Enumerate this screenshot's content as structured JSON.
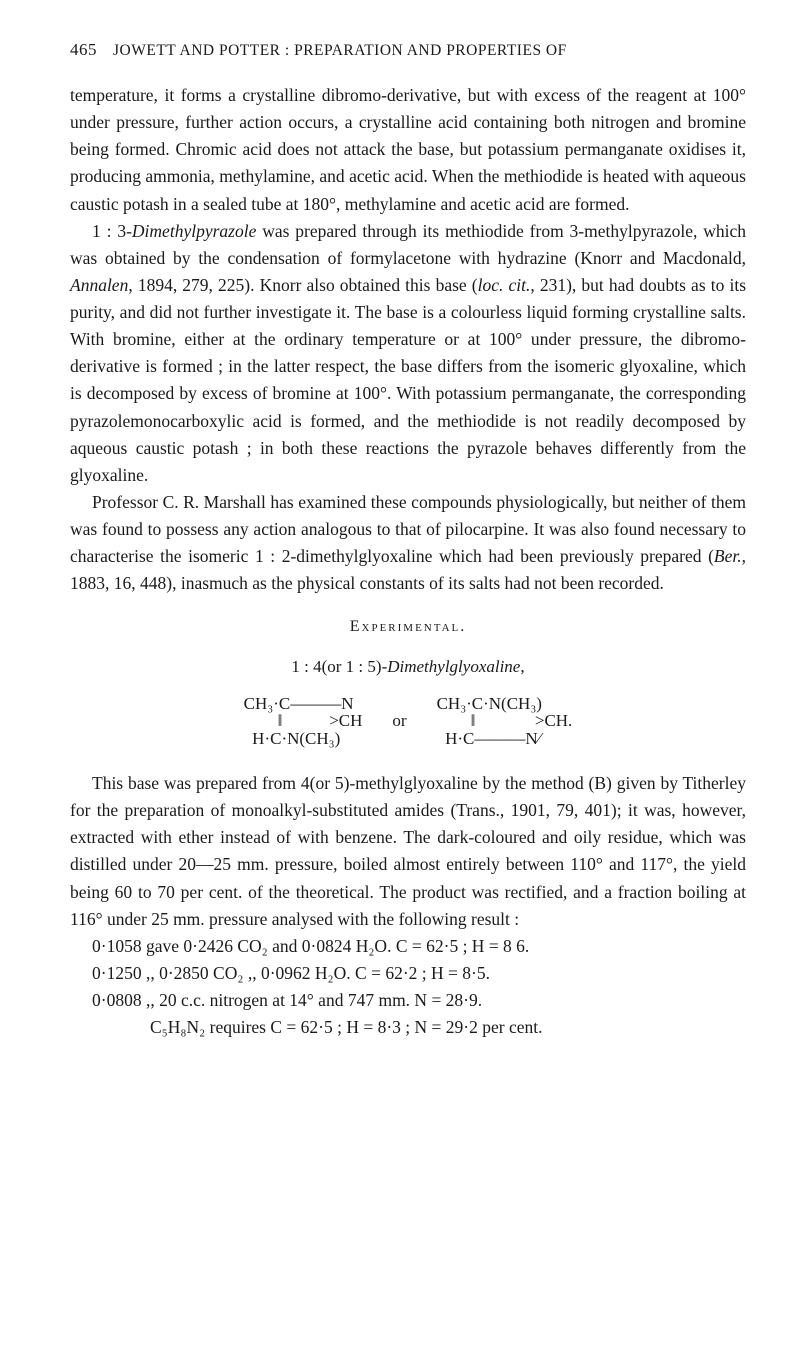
{
  "page_number": "465",
  "header": "JOWETT AND POTTER : PREPARATION AND PROPERTIES OF",
  "para1": "temperature, it forms a crystalline dibromo-derivative, but with excess of the reagent at 100° under pressure, further action occurs, a crys­talline acid containing both nitrogen and bromine being formed. Chromic acid does not attack the base, but potassium permanganate oxidises it, producing ammonia, methylamine, and acetic acid. When the methiodide is heated with aqueous caustic potash in a sealed tube at 180°, methylamine and acetic acid are formed.",
  "para2_pre": "1 : 3-",
  "para2_ital": "Dimethylpyrazole",
  "para2_post": " was prepared through its methiodide from 3-methylpyrazole, which was obtained by the condensation of formyl­acetone with hydrazine (Knorr and Macdonald, ",
  "para2_ital2": "Annalen",
  "para2_post2": ", 1894, 279, 225). Knorr also obtained this base (",
  "para2_ital3": "loc. cit.",
  "para2_post3": ", 231), but had doubts as to its purity, and did not further investigate it. The base is a colour­less liquid forming crystalline salts. With bromine, either at the ordinary temperature or at 100° under pressure, the dibromo-derivative is formed ; in the latter respect, the base differs from the isomeric glyoxaline, which is decomposed by excess of bromine at 100°. With potassium permanganate, the corresponding pyrazolemonocarboxylic acid is formed, and the methiodide is not readily decomposed by aqueous caustic potash ; in both these reactions the pyrazole behaves differently from the glyoxaline.",
  "para3": "Professor C. R. Marshall has examined these compounds physiologic­ally, but neither of them was found to possess any action analogous to that of pilocarpine. It was also found necessary to characterise the isomeric 1 : 2-dimethylglyoxaline which had been previously prepared (",
  "para3_ital": "Ber.",
  "para3_post": ", 1883, 16, 448), inasmuch as the physical constants of its salts had not been recorded.",
  "section_heading": "Experimental.",
  "formula_label_pre": "1 : 4(or  1 : 5)-",
  "formula_label_ital": "Dimethylglyoxaline",
  "formula_label_post": ",",
  "chem_left_line1": "CH₃·C———N  ",
  "chem_left_line2": "        ‖           >CH",
  "chem_left_line3": "  H·C·N(CH₃)  ",
  "or_text": "or",
  "chem_right_line1": "CH₃·C·N(CH₃)  ",
  "chem_right_line2": "        ‖              >CH.",
  "chem_right_line3": "  H·C———N⁄",
  "para4": "This base was prepared from 4(or 5)-methylglyoxaline by the method (B) given by Titherley for the preparation of monoalkyl-substituted amides (Trans., 1901, 79, 401); it was, however, extracted with ether instead of with benzene. The dark-coloured and oily residue, which was distilled under 20—25 mm. pressure, boiled almost entirely be­tween 110° and 117°, the yield being 60 to 70 per cent. of the theoretical. The product was rectified, and a fraction boiling at 116° under 25 mm. pressure analysed with the following result :",
  "calc1": "0·1058 gave 0·2426 CO₂ and 0·0824 H₂O.   C = 62·5 ;  H = 8 6.",
  "calc2": "0·1250   ,,   0·2850 CO₂   ,,   0·0962 H₂O.   C = 62·2 ;  H = 8·5.",
  "calc3": "0·0808   ,,   20 c.c. nitrogen at 14° and 747 mm.   N = 28·9.",
  "calc4": "C₅H₈N₂ requires C = 62·5 ;  H = 8·3 ;  N = 29·2 per cent."
}
